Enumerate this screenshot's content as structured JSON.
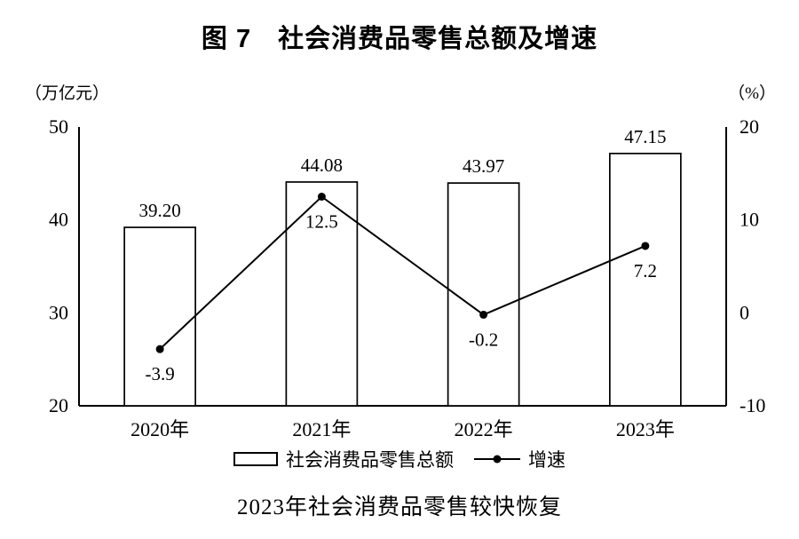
{
  "title": "图 7　社会消费品零售总额及增速",
  "caption": "2023年社会消费品零售较快恢复",
  "legend": {
    "bar_label": "社会消费品零售总额",
    "line_label": "增速"
  },
  "chart_data": {
    "type": "bar",
    "subtype": "bar-line-combo",
    "title": "图 7　社会消费品零售总额及增速",
    "categories": [
      "2020年",
      "2021年",
      "2022年",
      "2023年"
    ],
    "series": [
      {
        "name": "社会消费品零售总额",
        "type": "bar",
        "axis": "left",
        "values": [
          39.2,
          44.08,
          43.97,
          47.15
        ],
        "labels": [
          "39.20",
          "44.08",
          "43.97",
          "47.15"
        ]
      },
      {
        "name": "增速",
        "type": "line",
        "axis": "right",
        "values": [
          -3.9,
          12.5,
          -0.2,
          7.2
        ],
        "labels": [
          "-3.9",
          "12.5",
          "-0.2",
          "7.2"
        ]
      }
    ],
    "left_axis": {
      "unit": "（万亿元）",
      "range": [
        20,
        50
      ],
      "ticks": [
        50,
        40,
        30,
        20
      ]
    },
    "right_axis": {
      "unit": "（%）",
      "range": [
        -10,
        20
      ],
      "ticks": [
        20,
        10,
        0,
        -10
      ]
    },
    "grid": false,
    "legend_position": "bottom",
    "colors": {
      "bar_fill": "#ffffff",
      "stroke": "#000000"
    }
  }
}
